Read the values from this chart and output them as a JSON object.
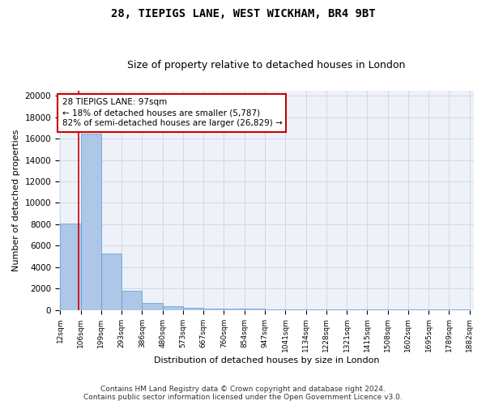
{
  "title": "28, TIEPIGS LANE, WEST WICKHAM, BR4 9BT",
  "subtitle": "Size of property relative to detached houses in London",
  "xlabel": "Distribution of detached houses by size in London",
  "ylabel": "Number of detached properties",
  "footer_line1": "Contains HM Land Registry data © Crown copyright and database right 2024.",
  "footer_line2": "Contains public sector information licensed under the Open Government Licence v3.0.",
  "bar_edges": [
    12,
    106,
    199,
    293,
    386,
    480,
    573,
    667,
    760,
    854,
    947,
    1041,
    1134,
    1228,
    1321,
    1415,
    1508,
    1602,
    1695,
    1789,
    1882
  ],
  "bar_heights": [
    8050,
    16500,
    5250,
    1750,
    620,
    360,
    230,
    150,
    120,
    90,
    70,
    55,
    45,
    35,
    25,
    20,
    18,
    15,
    12,
    10
  ],
  "bar_color": "#aec6e8",
  "bar_edgecolor": "#5b9bd5",
  "property_size": 97,
  "property_line_color": "#cc0000",
  "annotation_text": "28 TIEPIGS LANE: 97sqm\n← 18% of detached houses are smaller (5,787)\n82% of semi-detached houses are larger (26,829) →",
  "annotation_box_color": "#cc0000",
  "annotation_fill": "#ffffff",
  "ylim": [
    0,
    20500
  ],
  "yticks": [
    0,
    2000,
    4000,
    6000,
    8000,
    10000,
    12000,
    14000,
    16000,
    18000,
    20000
  ],
  "tick_labels": [
    "12sqm",
    "106sqm",
    "199sqm",
    "293sqm",
    "386sqm",
    "480sqm",
    "573sqm",
    "667sqm",
    "760sqm",
    "854sqm",
    "947sqm",
    "1041sqm",
    "1134sqm",
    "1228sqm",
    "1321sqm",
    "1415sqm",
    "1508sqm",
    "1602sqm",
    "1695sqm",
    "1789sqm",
    "1882sqm"
  ],
  "grid_color": "#d0d8e8",
  "bg_color": "#eef2f8",
  "title_fontsize": 10,
  "subtitle_fontsize": 9,
  "axis_fontsize": 8,
  "tick_fontsize": 6.5,
  "footer_fontsize": 6.5,
  "annotation_fontsize": 7.5
}
